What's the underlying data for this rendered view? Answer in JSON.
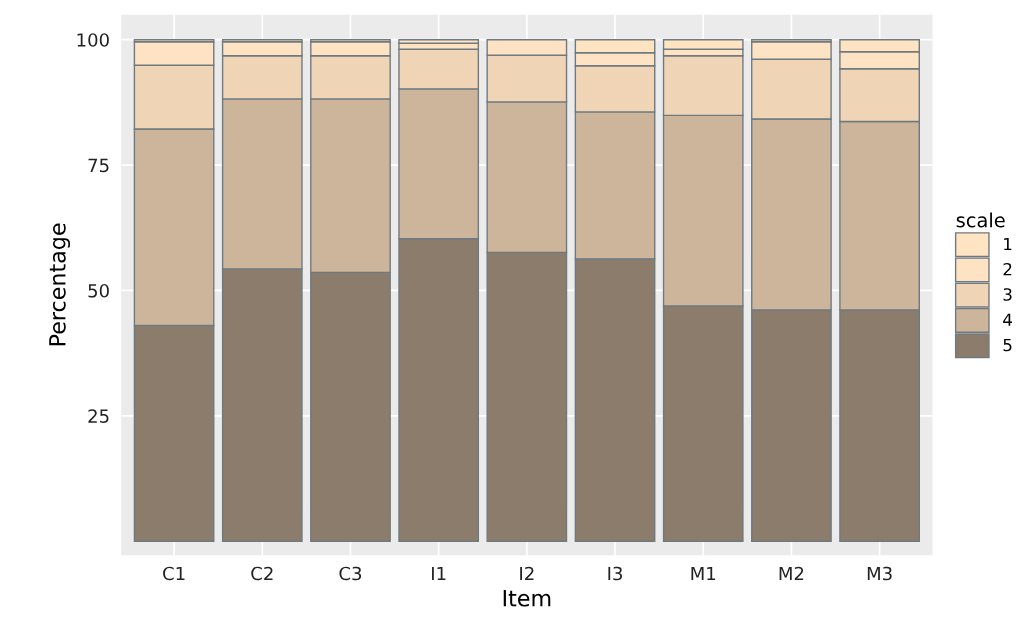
{
  "chart_data": {
    "type": "bar",
    "stacked": true,
    "xlabel": "Item",
    "ylabel": "Percentage",
    "legend_title": "scale",
    "legend": "right",
    "grid": true,
    "categories": [
      "C1",
      "C2",
      "C3",
      "I1",
      "I2",
      "I3",
      "M1",
      "M2",
      "M3"
    ],
    "series": [
      {
        "name": "5",
        "color": "#8b7c6b",
        "values": [
          43.0,
          54.3,
          53.6,
          60.3,
          57.6,
          56.3,
          46.9,
          46.1,
          46.1
        ]
      },
      {
        "name": "4",
        "color": "#cdb59c",
        "values": [
          39.2,
          33.9,
          34.6,
          29.9,
          30.0,
          29.3,
          38.0,
          38.1,
          37.6
        ]
      },
      {
        "name": "3",
        "color": "#efd5b5",
        "values": [
          12.7,
          8.6,
          8.6,
          7.9,
          9.3,
          9.2,
          11.9,
          11.9,
          10.5
        ]
      },
      {
        "name": "2",
        "color": "#fde3c3",
        "values": [
          4.7,
          2.8,
          2.8,
          1.2,
          3.1,
          2.6,
          1.3,
          3.5,
          3.4
        ]
      },
      {
        "name": "1",
        "color": "#ffe4c4",
        "values": [
          0.4,
          0.4,
          0.4,
          0.7,
          null,
          2.6,
          1.9,
          0.4,
          2.4
        ]
      }
    ],
    "ylim": [
      -2.8,
      105
    ],
    "yticks": [
      25,
      50,
      75,
      100
    ]
  }
}
